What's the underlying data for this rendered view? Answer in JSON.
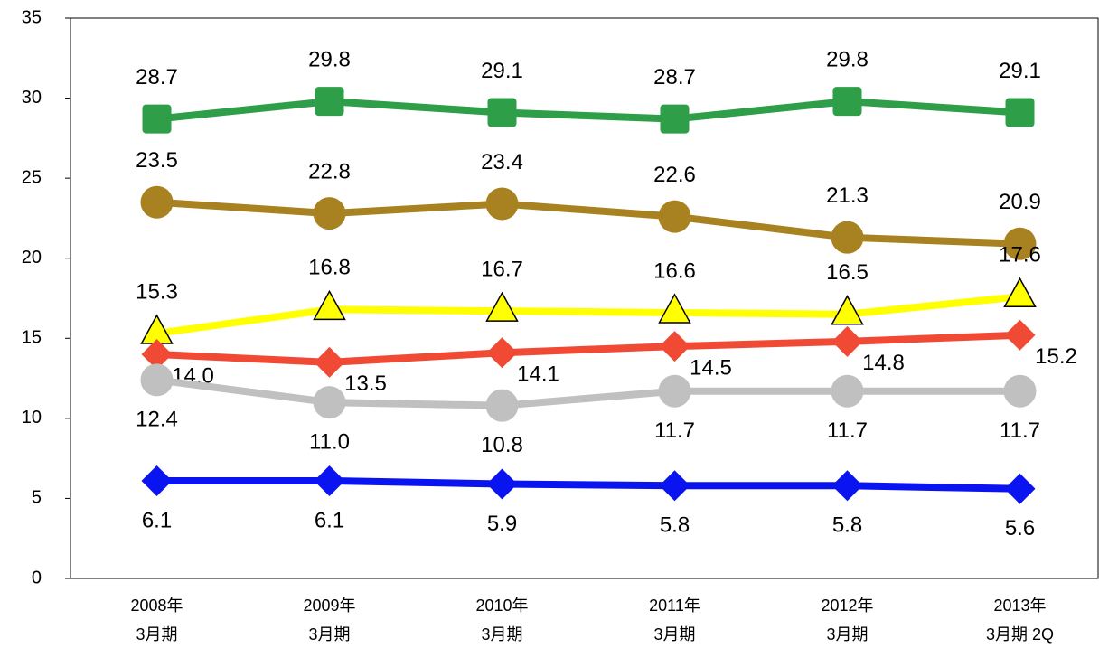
{
  "chart_data": {
    "type": "line",
    "categories": [
      [
        "2008年",
        "3月期"
      ],
      [
        "2009年",
        "3月期"
      ],
      [
        "2010年",
        "3月期"
      ],
      [
        "2011年",
        "3月期"
      ],
      [
        "2012年",
        "3月期"
      ],
      [
        "2013年",
        "3月期 2Q"
      ]
    ],
    "ylim": [
      0,
      35
    ],
    "yticks": [
      0,
      5,
      10,
      15,
      20,
      25,
      30,
      35
    ],
    "grid": false,
    "series": [
      {
        "color": "#2e9e48",
        "marker": "square",
        "label_position": "above",
        "values": [
          28.7,
          29.8,
          29.1,
          28.7,
          29.8,
          29.1
        ],
        "value_labels": [
          "28.7",
          "29.8",
          "29.1",
          "28.7",
          "29.8",
          "29.1"
        ]
      },
      {
        "color": "#a88220",
        "marker": "circle",
        "label_position": "above",
        "values": [
          23.5,
          22.8,
          23.4,
          22.6,
          21.3,
          20.9
        ],
        "value_labels": [
          "23.5",
          "22.8",
          "23.4",
          "22.6",
          "21.3",
          "20.9"
        ]
      },
      {
        "color": "#ffff00",
        "marker": "triangle",
        "label_position": "above",
        "values": [
          15.3,
          16.8,
          16.7,
          16.6,
          16.5,
          17.6
        ],
        "value_labels": [
          "15.3",
          "16.8",
          "16.7",
          "16.6",
          "16.5",
          "17.6"
        ]
      },
      {
        "color": "#f04a35",
        "marker": "diamond",
        "label_position": "below-right",
        "values": [
          14.0,
          13.5,
          14.1,
          14.5,
          14.8,
          15.2
        ],
        "value_labels": [
          "14.0",
          "13.5",
          "14.1",
          "14.5",
          "14.8",
          "15.2"
        ]
      },
      {
        "color": "#c0c0c0",
        "marker": "circle",
        "label_position": "below",
        "values": [
          12.4,
          11.0,
          10.8,
          11.7,
          11.7,
          11.7
        ],
        "value_labels": [
          "12.4",
          "11.0",
          "10.8",
          "11.7",
          "11.7",
          "11.7"
        ]
      },
      {
        "color": "#0a14f0",
        "marker": "diamond",
        "label_position": "below",
        "values": [
          6.1,
          6.1,
          5.9,
          5.8,
          5.8,
          5.6
        ],
        "value_labels": [
          "6.1",
          "6.1",
          "5.9",
          "5.8",
          "5.8",
          "5.6"
        ]
      }
    ]
  }
}
